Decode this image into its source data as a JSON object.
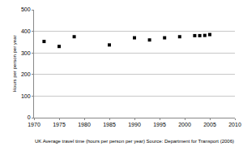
{
  "chart_data": {
    "type": "scatter",
    "y_label": "Hours per person per year",
    "annotation": "UK Average travel time (hours per person per year) Source: Department for Transport (2006)",
    "x": [
      1972,
      1975,
      1978,
      1985,
      1990,
      1993,
      1996,
      1999,
      2002,
      2003,
      2004,
      2005
    ],
    "values": [
      353,
      330,
      375,
      337,
      370,
      360,
      370,
      375,
      380,
      380,
      381,
      385
    ],
    "color": "#000000",
    "marker": "square",
    "xlim": [
      1970,
      2010
    ],
    "xticks": [
      1970,
      1975,
      1980,
      1985,
      1990,
      1995,
      2000,
      2005,
      2010
    ],
    "ylim": [
      0,
      500
    ],
    "yticks": [
      0,
      100,
      200,
      300,
      400,
      500
    ],
    "grid": true
  }
}
